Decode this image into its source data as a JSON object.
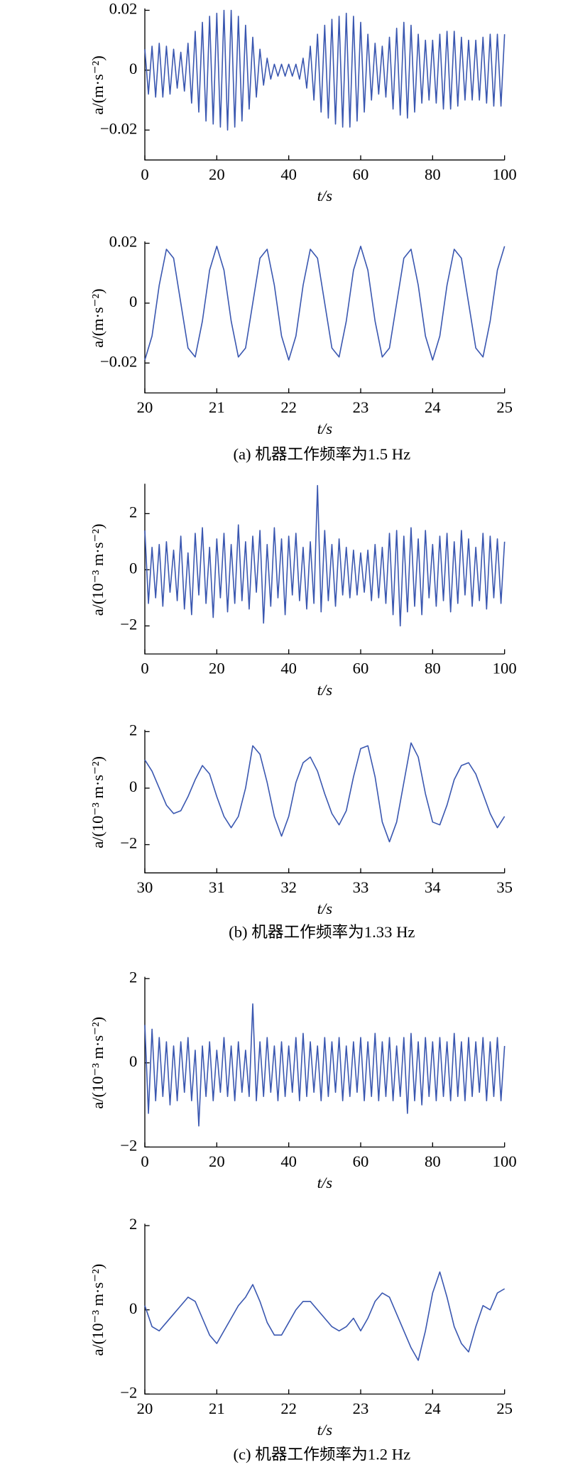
{
  "chart_data": [
    {
      "type": "line",
      "ylabel": "a/(m·s⁻²)",
      "xlabel": "t/s",
      "color": "#3a57b0",
      "x": [
        0,
        1,
        2,
        3,
        4,
        5,
        6,
        7,
        8,
        9,
        10,
        11,
        12,
        13,
        14,
        15,
        16,
        17,
        18,
        19,
        20,
        21,
        22,
        23,
        24,
        25,
        26,
        27,
        28,
        29,
        30,
        31,
        32,
        33,
        34,
        35,
        36,
        37,
        38,
        39,
        40,
        41,
        42,
        43,
        44,
        45,
        46,
        47,
        48,
        49,
        50,
        51,
        52,
        53,
        54,
        55,
        56,
        57,
        58,
        59,
        60,
        61,
        62,
        63,
        64,
        65,
        66,
        67,
        68,
        69,
        70,
        71,
        72,
        73,
        74,
        75,
        76,
        77,
        78,
        79,
        80,
        81,
        82,
        83,
        84,
        85,
        86,
        87,
        88,
        89,
        90,
        91,
        92,
        93,
        94,
        95,
        96,
        97,
        98,
        99,
        100
      ],
      "values": [
        0.007,
        -0.008,
        0.008,
        -0.009,
        0.009,
        -0.009,
        0.008,
        -0.008,
        0.007,
        -0.006,
        0.006,
        -0.007,
        0.009,
        -0.011,
        0.013,
        -0.014,
        0.016,
        -0.017,
        0.018,
        -0.018,
        0.019,
        -0.019,
        0.02,
        -0.02,
        0.02,
        -0.019,
        0.018,
        -0.017,
        0.015,
        -0.013,
        0.011,
        -0.009,
        0.007,
        -0.005,
        0.004,
        -0.003,
        0.002,
        -0.002,
        0.002,
        -0.002,
        0.002,
        -0.002,
        0.002,
        -0.003,
        0.004,
        -0.006,
        0.008,
        -0.01,
        0.012,
        -0.014,
        0.015,
        -0.016,
        0.017,
        -0.018,
        0.018,
        -0.019,
        0.019,
        -0.019,
        0.018,
        -0.017,
        0.016,
        -0.014,
        0.012,
        -0.01,
        0.009,
        -0.008,
        0.008,
        -0.009,
        0.011,
        -0.013,
        0.014,
        -0.015,
        0.016,
        -0.016,
        0.015,
        -0.014,
        0.012,
        -0.011,
        0.01,
        -0.01,
        0.01,
        -0.011,
        0.012,
        -0.013,
        0.013,
        -0.013,
        0.013,
        -0.012,
        0.011,
        -0.01,
        0.01,
        -0.01,
        0.01,
        -0.01,
        0.011,
        -0.011,
        0.012,
        -0.012,
        0.012,
        -0.012,
        0.012
      ],
      "xlim": [
        0,
        100
      ],
      "xticks": [
        0,
        20,
        40,
        60,
        80,
        100
      ],
      "ylim": [
        -0.03,
        0.02
      ],
      "yticks": [
        {
          "value": -0.02,
          "label": "−0.02"
        },
        0,
        0.02
      ]
    },
    {
      "type": "line",
      "ylabel": "a/(m·s⁻²)",
      "xlabel": "t/s",
      "color": "#3a57b0",
      "x": [
        20,
        20.1,
        20.2,
        20.3,
        20.4,
        20.5,
        20.6,
        20.7,
        20.8,
        20.9,
        21,
        21.1,
        21.2,
        21.3,
        21.4,
        21.5,
        21.6,
        21.7,
        21.8,
        21.9,
        22,
        22.1,
        22.2,
        22.3,
        22.4,
        22.5,
        22.6,
        22.7,
        22.8,
        22.9,
        23,
        23.1,
        23.2,
        23.3,
        23.4,
        23.5,
        23.6,
        23.7,
        23.8,
        23.9,
        24,
        24.1,
        24.2,
        24.3,
        24.4,
        24.5,
        24.6,
        24.7,
        24.8,
        24.9,
        25
      ],
      "values": [
        -0.019,
        -0.011,
        0.006,
        0.018,
        0.015,
        0,
        -0.015,
        -0.018,
        -0.006,
        0.011,
        0.019,
        0.011,
        -0.006,
        -0.018,
        -0.015,
        0,
        0.015,
        0.018,
        0.006,
        -0.011,
        -0.019,
        -0.011,
        0.006,
        0.018,
        0.015,
        0,
        -0.015,
        -0.018,
        -0.006,
        0.011,
        0.019,
        0.011,
        -0.006,
        -0.018,
        -0.015,
        0,
        0.015,
        0.018,
        0.006,
        -0.011,
        -0.019,
        -0.011,
        0.006,
        0.018,
        0.015,
        0,
        -0.015,
        -0.018,
        -0.006,
        0.011,
        0.019
      ],
      "xlim": [
        20,
        25
      ],
      "xticks": [
        20,
        21,
        22,
        23,
        24,
        25
      ],
      "ylim": [
        -0.03,
        0.02
      ],
      "yticks": [
        {
          "value": -0.02,
          "label": "−0.02"
        },
        0,
        0.02
      ]
    },
    {
      "type": "line",
      "ylabel": "a/(10⁻³ m·s⁻²)",
      "xlabel": "t/s",
      "color": "#3a57b0",
      "x": [
        0,
        1,
        2,
        3,
        4,
        5,
        6,
        7,
        8,
        9,
        10,
        11,
        12,
        13,
        14,
        15,
        16,
        17,
        18,
        19,
        20,
        21,
        22,
        23,
        24,
        25,
        26,
        27,
        28,
        29,
        30,
        31,
        32,
        33,
        34,
        35,
        36,
        37,
        38,
        39,
        40,
        41,
        42,
        43,
        44,
        45,
        46,
        47,
        48,
        49,
        50,
        51,
        52,
        53,
        54,
        55,
        56,
        57,
        58,
        59,
        60,
        61,
        62,
        63,
        64,
        65,
        66,
        67,
        68,
        69,
        70,
        71,
        72,
        73,
        74,
        75,
        76,
        77,
        78,
        79,
        80,
        81,
        82,
        83,
        84,
        85,
        86,
        87,
        88,
        89,
        90,
        91,
        92,
        93,
        94,
        95,
        96,
        97,
        98,
        99,
        100
      ],
      "values": [
        1.4,
        -1.2,
        0.8,
        -1.0,
        0.9,
        -1.3,
        1.0,
        -0.8,
        0.7,
        -1.1,
        1.2,
        -1.4,
        0.6,
        -1.6,
        1.3,
        -0.9,
        1.5,
        -1.2,
        0.8,
        -1.7,
        1.1,
        -1.0,
        1.3,
        -1.5,
        0.9,
        -1.2,
        1.6,
        -1.1,
        1.0,
        -1.4,
        1.2,
        -0.8,
        1.4,
        -1.9,
        0.9,
        -1.3,
        1.5,
        -1.0,
        1.1,
        -1.6,
        1.2,
        -0.9,
        1.3,
        -1.1,
        0.8,
        -1.4,
        1.0,
        -1.2,
        3.0,
        -1.5,
        1.4,
        -1.1,
        0.9,
        -1.3,
        1.1,
        -0.9,
        0.8,
        -1.0,
        0.7,
        -0.9,
        0.6,
        -0.8,
        0.7,
        -1.1,
        0.9,
        -1.0,
        0.8,
        -1.2,
        1.3,
        -1.6,
        1.4,
        -2.0,
        1.2,
        -1.5,
        1.5,
        -1.3,
        1.1,
        -1.6,
        1.4,
        -1.0,
        0.9,
        -1.3,
        1.2,
        -1.1,
        1.3,
        -1.5,
        1.0,
        -1.2,
        1.4,
        -0.9,
        1.1,
        -1.3,
        0.8,
        -1.1,
        1.3,
        -1.4,
        1.2,
        -1.0,
        1.1,
        -1.2,
        1.0
      ],
      "xlim": [
        0,
        100
      ],
      "xticks": [
        0,
        20,
        40,
        60,
        80,
        100
      ],
      "ylim": [
        -3,
        3
      ],
      "yticks": [
        {
          "value": -2,
          "label": "−2"
        },
        0,
        2
      ]
    },
    {
      "type": "line",
      "ylabel": "a/(10⁻³ m·s⁻²)",
      "xlabel": "t/s",
      "color": "#3a57b0",
      "x": [
        30,
        30.1,
        30.2,
        30.3,
        30.4,
        30.5,
        30.6,
        30.7,
        30.8,
        30.9,
        31,
        31.1,
        31.2,
        31.3,
        31.4,
        31.5,
        31.6,
        31.7,
        31.8,
        31.9,
        32,
        32.1,
        32.2,
        32.3,
        32.4,
        32.5,
        32.6,
        32.7,
        32.8,
        32.9,
        33,
        33.1,
        33.2,
        33.3,
        33.4,
        33.5,
        33.6,
        33.7,
        33.8,
        33.9,
        34,
        34.1,
        34.2,
        34.3,
        34.4,
        34.5,
        34.6,
        34.7,
        34.8,
        34.9,
        35
      ],
      "values": [
        1.0,
        0.6,
        0.0,
        -0.6,
        -0.9,
        -0.8,
        -0.3,
        0.3,
        0.8,
        0.5,
        -0.3,
        -1.0,
        -1.4,
        -1.0,
        0.0,
        1.5,
        1.2,
        0.2,
        -1.0,
        -1.7,
        -1.0,
        0.2,
        0.9,
        1.1,
        0.6,
        -0.2,
        -0.9,
        -1.3,
        -0.8,
        0.4,
        1.4,
        1.5,
        0.4,
        -1.2,
        -1.9,
        -1.2,
        0.2,
        1.6,
        1.1,
        -0.2,
        -1.2,
        -1.3,
        -0.6,
        0.3,
        0.8,
        0.9,
        0.5,
        -0.2,
        -0.9,
        -1.4,
        -1.0
      ],
      "xlim": [
        30,
        35
      ],
      "xticks": [
        30,
        31,
        32,
        33,
        34,
        35
      ],
      "ylim": [
        -3,
        2
      ],
      "yticks": [
        {
          "value": -2,
          "label": "−2"
        },
        0,
        2
      ]
    },
    {
      "type": "line",
      "ylabel": "a/(10⁻³ m·s⁻²)",
      "xlabel": "t/s",
      "color": "#3a57b0",
      "x": [
        0,
        1,
        2,
        3,
        4,
        5,
        6,
        7,
        8,
        9,
        10,
        11,
        12,
        13,
        14,
        15,
        16,
        17,
        18,
        19,
        20,
        21,
        22,
        23,
        24,
        25,
        26,
        27,
        28,
        29,
        30,
        31,
        32,
        33,
        34,
        35,
        36,
        37,
        38,
        39,
        40,
        41,
        42,
        43,
        44,
        45,
        46,
        47,
        48,
        49,
        50,
        51,
        52,
        53,
        54,
        55,
        56,
        57,
        58,
        59,
        60,
        61,
        62,
        63,
        64,
        65,
        66,
        67,
        68,
        69,
        70,
        71,
        72,
        73,
        74,
        75,
        76,
        77,
        78,
        79,
        80,
        81,
        82,
        83,
        84,
        85,
        86,
        87,
        88,
        89,
        90,
        91,
        92,
        93,
        94,
        95,
        96,
        97,
        98,
        99,
        100
      ],
      "values": [
        0.9,
        -1.2,
        0.8,
        -0.9,
        0.6,
        -0.8,
        0.5,
        -1.0,
        0.4,
        -0.9,
        0.5,
        -0.7,
        0.6,
        -0.9,
        0.3,
        -1.5,
        0.4,
        -0.8,
        0.5,
        -0.9,
        0.3,
        -0.7,
        0.6,
        -0.8,
        0.4,
        -0.9,
        0.5,
        -0.7,
        0.3,
        -0.8,
        1.4,
        -0.9,
        0.5,
        -0.8,
        0.6,
        -0.7,
        0.4,
        -0.9,
        0.5,
        -0.8,
        0.4,
        -0.7,
        0.6,
        -0.9,
        0.7,
        -0.8,
        0.5,
        -0.7,
        0.4,
        -0.9,
        0.6,
        -0.8,
        0.5,
        -0.7,
        0.6,
        -0.9,
        0.4,
        -0.8,
        0.5,
        -0.7,
        0.6,
        -0.9,
        0.5,
        -0.8,
        0.7,
        -0.9,
        0.5,
        -0.8,
        0.6,
        -0.9,
        0.4,
        -0.8,
        0.6,
        -1.2,
        0.7,
        -0.9,
        0.5,
        -1.0,
        0.6,
        -0.8,
        0.5,
        -0.9,
        0.6,
        -0.8,
        0.5,
        -0.9,
        0.7,
        -0.8,
        0.5,
        -0.9,
        0.6,
        -0.8,
        0.5,
        -0.7,
        0.6,
        -0.9,
        0.5,
        -0.8,
        0.6,
        -0.9,
        0.4
      ],
      "xlim": [
        0,
        100
      ],
      "xticks": [
        0,
        20,
        40,
        60,
        80,
        100
      ],
      "ylim": [
        -2,
        2
      ],
      "yticks": [
        {
          "value": -2,
          "label": "−2"
        },
        0,
        2
      ]
    },
    {
      "type": "line",
      "ylabel": "a/(10⁻³ m·s⁻²)",
      "xlabel": "t/s",
      "color": "#3a57b0",
      "x": [
        20,
        20.1,
        20.2,
        20.3,
        20.4,
        20.5,
        20.6,
        20.7,
        20.8,
        20.9,
        21,
        21.1,
        21.2,
        21.3,
        21.4,
        21.5,
        21.6,
        21.7,
        21.8,
        21.9,
        22,
        22.1,
        22.2,
        22.3,
        22.4,
        22.5,
        22.6,
        22.7,
        22.8,
        22.9,
        23,
        23.1,
        23.2,
        23.3,
        23.4,
        23.5,
        23.6,
        23.7,
        23.8,
        23.9,
        24,
        24.1,
        24.2,
        24.3,
        24.4,
        24.5,
        24.6,
        24.7,
        24.8,
        24.9,
        25
      ],
      "values": [
        0.1,
        -0.4,
        -0.5,
        -0.3,
        -0.1,
        0.1,
        0.3,
        0.2,
        -0.2,
        -0.6,
        -0.8,
        -0.5,
        -0.2,
        0.1,
        0.3,
        0.6,
        0.2,
        -0.3,
        -0.6,
        -0.6,
        -0.3,
        0.0,
        0.2,
        0.2,
        0.0,
        -0.2,
        -0.4,
        -0.5,
        -0.4,
        -0.2,
        -0.5,
        -0.2,
        0.2,
        0.4,
        0.3,
        -0.1,
        -0.5,
        -0.9,
        -1.2,
        -0.5,
        0.4,
        0.9,
        0.3,
        -0.4,
        -0.8,
        -1.0,
        -0.4,
        0.1,
        0.0,
        0.4,
        0.5
      ],
      "xlim": [
        20,
        25
      ],
      "xticks": [
        20,
        21,
        22,
        23,
        24,
        25
      ],
      "ylim": [
        -2,
        2
      ],
      "yticks": [
        {
          "value": -2,
          "label": "−2"
        },
        0,
        2
      ]
    }
  ],
  "captions": [
    "(a) 机器工作频率为1.5 Hz",
    "(b) 机器工作频率为1.33 Hz",
    "(c) 机器工作频率为1.2 Hz"
  ]
}
